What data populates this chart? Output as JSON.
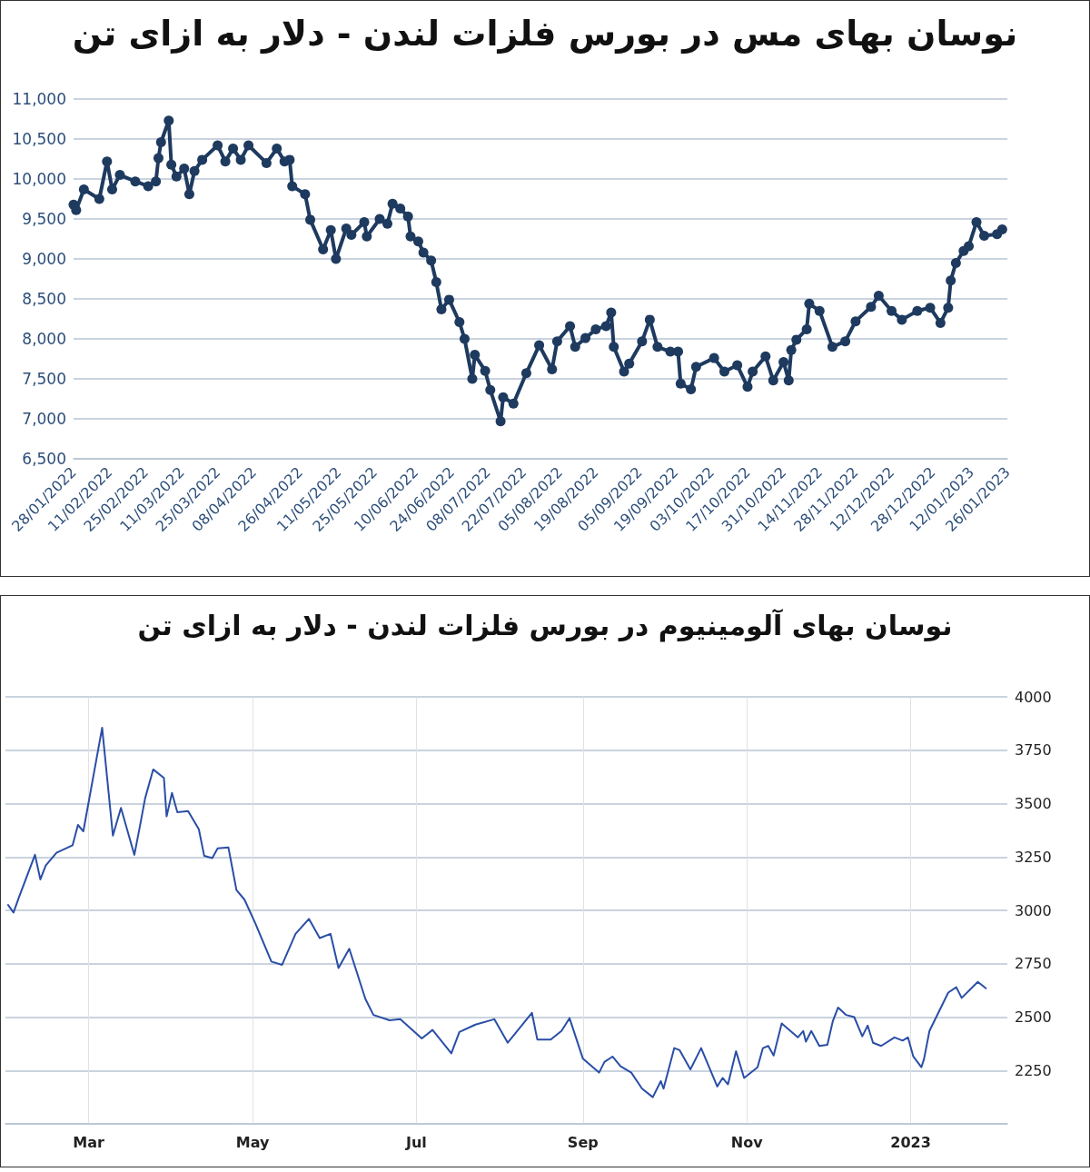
{
  "chart_data": [
    {
      "type": "line",
      "title": "نوسان بهای مس در بورس فلزات لندن - دلار به ازای تن",
      "marker": "circle",
      "grid": "y",
      "x": [
        "2022-01-28",
        "2022-01-29",
        "2022-02-01",
        "2022-02-07",
        "2022-02-10",
        "2022-02-12",
        "2022-02-15",
        "2022-02-21",
        "2022-02-26",
        "2022-03-01",
        "2022-03-02",
        "2022-03-03",
        "2022-03-06",
        "2022-03-07",
        "2022-03-09",
        "2022-03-12",
        "2022-03-14",
        "2022-03-16",
        "2022-03-19",
        "2022-03-25",
        "2022-03-28",
        "2022-03-31",
        "2022-04-03",
        "2022-04-06",
        "2022-04-13",
        "2022-04-17",
        "2022-04-20",
        "2022-04-22",
        "2022-04-23",
        "2022-04-28",
        "2022-04-30",
        "2022-05-05",
        "2022-05-08",
        "2022-05-10",
        "2022-05-14",
        "2022-05-16",
        "2022-05-21",
        "2022-05-22",
        "2022-05-27",
        "2022-05-30",
        "2022-06-01",
        "2022-06-04",
        "2022-06-07",
        "2022-06-08",
        "2022-06-11",
        "2022-06-13",
        "2022-06-16",
        "2022-06-18",
        "2022-06-20",
        "2022-06-23",
        "2022-06-27",
        "2022-06-29",
        "2022-07-02",
        "2022-07-03",
        "2022-07-07",
        "2022-07-09",
        "2022-07-13",
        "2022-07-14",
        "2022-07-18",
        "2022-07-23",
        "2022-07-28",
        "2022-08-02",
        "2022-08-04",
        "2022-08-09",
        "2022-08-11",
        "2022-08-15",
        "2022-08-19",
        "2022-08-23",
        "2022-08-25",
        "2022-08-26",
        "2022-08-30",
        "2022-09-01",
        "2022-09-06",
        "2022-09-09",
        "2022-09-12",
        "2022-09-17",
        "2022-09-20",
        "2022-09-21",
        "2022-09-25",
        "2022-09-27",
        "2022-10-04",
        "2022-10-08",
        "2022-10-13",
        "2022-10-17",
        "2022-10-19",
        "2022-10-24",
        "2022-10-27",
        "2022-10-31",
        "2022-11-02",
        "2022-11-03",
        "2022-11-05",
        "2022-11-09",
        "2022-11-10",
        "2022-11-14",
        "2022-11-19",
        "2022-11-24",
        "2022-11-28",
        "2022-12-04",
        "2022-12-07",
        "2022-12-12",
        "2022-12-16",
        "2022-12-22",
        "2022-12-27",
        "2022-12-31",
        "2023-01-03",
        "2023-01-04",
        "2023-01-06",
        "2023-01-09",
        "2023-01-11",
        "2023-01-14",
        "2023-01-17",
        "2023-01-22",
        "2023-01-24"
      ],
      "series": [
        {
          "color": "#1e3a5f",
          "values": [
            9680,
            9610,
            9870,
            9750,
            10220,
            9870,
            10050,
            9970,
            9910,
            9970,
            10260,
            10460,
            10730,
            10180,
            10030,
            10130,
            9810,
            10100,
            10240,
            10420,
            10220,
            10380,
            10240,
            10420,
            10200,
            10380,
            10220,
            10240,
            9910,
            9810,
            9490,
            9120,
            9360,
            9000,
            9380,
            9300,
            9460,
            9280,
            9500,
            9440,
            9690,
            9630,
            9530,
            9280,
            9220,
            9080,
            8980,
            8710,
            8370,
            8490,
            8210,
            8000,
            7500,
            7800,
            7600,
            7360,
            6970,
            7270,
            7190,
            7570,
            7920,
            7620,
            7970,
            8160,
            7900,
            8010,
            8120,
            8160,
            8330,
            7900,
            7590,
            7690,
            7970,
            8240,
            7900,
            7840,
            7840,
            7440,
            7370,
            7650,
            7760,
            7590,
            7670,
            7400,
            7590,
            7780,
            7480,
            7710,
            7480,
            7860,
            7990,
            8120,
            8440,
            8350,
            7900,
            7970,
            8220,
            8400,
            8540,
            8350,
            8240,
            8350,
            8390,
            8200,
            8390,
            8730,
            8950,
            9100,
            9160,
            9460,
            9290,
            9310,
            9370
          ]
        }
      ],
      "xlim": [
        "2022-01-28",
        "2023-01-26"
      ],
      "xticks": [
        {
          "value": "2022-01-28",
          "label": "28/01/2022"
        },
        {
          "value": "2022-02-11",
          "label": "11/02/2022"
        },
        {
          "value": "2022-02-25",
          "label": "25/02/2022"
        },
        {
          "value": "2022-03-11",
          "label": "11/03/2022"
        },
        {
          "value": "2022-03-25",
          "label": "25/03/2022"
        },
        {
          "value": "2022-04-08",
          "label": "08/04/2022"
        },
        {
          "value": "2022-04-26",
          "label": "26/04/2022"
        },
        {
          "value": "2022-05-11",
          "label": "11/05/2022"
        },
        {
          "value": "2022-05-25",
          "label": "25/05/2022"
        },
        {
          "value": "2022-06-10",
          "label": "10/06/2022"
        },
        {
          "value": "2022-06-24",
          "label": "24/06/2022"
        },
        {
          "value": "2022-07-08",
          "label": "08/07/2022"
        },
        {
          "value": "2022-07-22",
          "label": "22/07/2022"
        },
        {
          "value": "2022-08-05",
          "label": "05/08/2022"
        },
        {
          "value": "2022-08-19",
          "label": "19/08/2022"
        },
        {
          "value": "2022-09-05",
          "label": "05/09/2022"
        },
        {
          "value": "2022-09-19",
          "label": "19/09/2022"
        },
        {
          "value": "2022-10-03",
          "label": "03/10/2022"
        },
        {
          "value": "2022-10-17",
          "label": "17/10/2022"
        },
        {
          "value": "2022-10-31",
          "label": "31/10/2022"
        },
        {
          "value": "2022-11-14",
          "label": "14/11/2022"
        },
        {
          "value": "2022-11-28",
          "label": "28/11/2022"
        },
        {
          "value": "2022-12-12",
          "label": "12/12/2022"
        },
        {
          "value": "2022-12-28",
          "label": "28/12/2022"
        },
        {
          "value": "2023-01-12",
          "label": "12/01/2023"
        },
        {
          "value": "2023-01-26",
          "label": "26/01/2023"
        }
      ],
      "ylim": [
        6500,
        11000
      ],
      "yticks": [
        {
          "value": 6500,
          "label": "6,500"
        },
        {
          "value": 7000,
          "label": "7,000"
        },
        {
          "value": 7500,
          "label": "7,500"
        },
        {
          "value": 8000,
          "label": "8,000"
        },
        {
          "value": 8500,
          "label": "8,500"
        },
        {
          "value": 9000,
          "label": "9,000"
        },
        {
          "value": 9500,
          "label": "9,500"
        },
        {
          "value": 10000,
          "label": "10,000"
        },
        {
          "value": 10500,
          "label": "10,500"
        },
        {
          "value": 11000,
          "label": "11,000"
        }
      ]
    },
    {
      "type": "line",
      "title": "نوسان بهای آلومینیوم در بورس فلزات لندن - دلار به ازای تن",
      "grid": true,
      "x": [
        "2022-01-30",
        "2022-02-01",
        "2022-02-03",
        "2022-02-09",
        "2022-02-11",
        "2022-02-13",
        "2022-02-17",
        "2022-02-23",
        "2022-02-25",
        "2022-02-27",
        "2022-03-06",
        "2022-03-10",
        "2022-03-13",
        "2022-03-18",
        "2022-03-20",
        "2022-03-22",
        "2022-03-25",
        "2022-03-29",
        "2022-03-30",
        "2022-04-01",
        "2022-04-03",
        "2022-04-07",
        "2022-04-11",
        "2022-04-13",
        "2022-04-16",
        "2022-04-18",
        "2022-04-22",
        "2022-04-25",
        "2022-04-28",
        "2022-05-02",
        "2022-05-08",
        "2022-05-12",
        "2022-05-17",
        "2022-05-22",
        "2022-05-26",
        "2022-05-30",
        "2022-06-02",
        "2022-06-06",
        "2022-06-12",
        "2022-06-15",
        "2022-06-21",
        "2022-06-25",
        "2022-07-03",
        "2022-07-07",
        "2022-07-14",
        "2022-07-17",
        "2022-07-23",
        "2022-07-30",
        "2022-08-04",
        "2022-08-13",
        "2022-08-15",
        "2022-08-20",
        "2022-08-24",
        "2022-08-27",
        "2022-09-01",
        "2022-09-07",
        "2022-09-09",
        "2022-09-12",
        "2022-09-15",
        "2022-09-19",
        "2022-09-23",
        "2022-09-27",
        "2022-09-30",
        "2022-10-01",
        "2022-10-05",
        "2022-10-07",
        "2022-10-11",
        "2022-10-15",
        "2022-10-21",
        "2022-10-23",
        "2022-10-25",
        "2022-10-28",
        "2022-10-31",
        "2022-11-05",
        "2022-11-07",
        "2022-11-09",
        "2022-11-11",
        "2022-11-14",
        "2022-11-20",
        "2022-11-22",
        "2022-11-23",
        "2022-11-25",
        "2022-11-28",
        "2022-12-01",
        "2022-12-03",
        "2022-12-05",
        "2022-12-08",
        "2022-12-11",
        "2022-12-14",
        "2022-12-16",
        "2022-12-18",
        "2022-12-21",
        "2022-12-26",
        "2022-12-29",
        "2022-12-31",
        "2023-01-02",
        "2023-01-05",
        "2023-01-06",
        "2023-01-08",
        "2023-01-15",
        "2023-01-18",
        "2023-01-20",
        "2023-01-26",
        "2023-01-29"
      ],
      "series": [
        {
          "color": "#2a4ea6",
          "axis": "y2",
          "values": [
            3025,
            2990,
            3060,
            3260,
            3145,
            3210,
            3270,
            3305,
            3400,
            3370,
            3855,
            3350,
            3480,
            3260,
            3390,
            3525,
            3660,
            3620,
            3440,
            3550,
            3460,
            3465,
            3380,
            3255,
            3245,
            3290,
            3295,
            3095,
            3050,
            2940,
            2760,
            2745,
            2890,
            2960,
            2870,
            2890,
            2730,
            2820,
            2585,
            2510,
            2485,
            2490,
            2400,
            2440,
            2330,
            2430,
            2465,
            2490,
            2380,
            2520,
            2395,
            2395,
            2435,
            2495,
            2305,
            2240,
            2290,
            2315,
            2270,
            2240,
            2165,
            2125,
            2200,
            2165,
            2355,
            2345,
            2255,
            2355,
            2175,
            2215,
            2185,
            2340,
            2215,
            2265,
            2355,
            2365,
            2320,
            2470,
            2405,
            2435,
            2385,
            2435,
            2365,
            2370,
            2480,
            2545,
            2510,
            2500,
            2410,
            2460,
            2380,
            2365,
            2405,
            2390,
            2405,
            2315,
            2265,
            2305,
            2435,
            2615,
            2640,
            2590,
            2665,
            2635
          ]
        }
      ],
      "xlim": [
        "2022-01-29",
        "2023-02-06"
      ],
      "xticks": [
        {
          "value": "2022-03-01",
          "label": "Mar"
        },
        {
          "value": "2022-05-01",
          "label": "May"
        },
        {
          "value": "2022-07-01",
          "label": "Jul"
        },
        {
          "value": "2022-09-01",
          "label": "Sep"
        },
        {
          "value": "2022-11-01",
          "label": "Nov"
        },
        {
          "value": "2023-01-01",
          "label": "2023"
        }
      ],
      "y2lim": [
        2000,
        4000
      ],
      "y2ticks": [
        {
          "value": 2000,
          "label": null
        },
        2250,
        2500,
        2750,
        3000,
        3250,
        3500,
        3750,
        4000
      ]
    }
  ]
}
